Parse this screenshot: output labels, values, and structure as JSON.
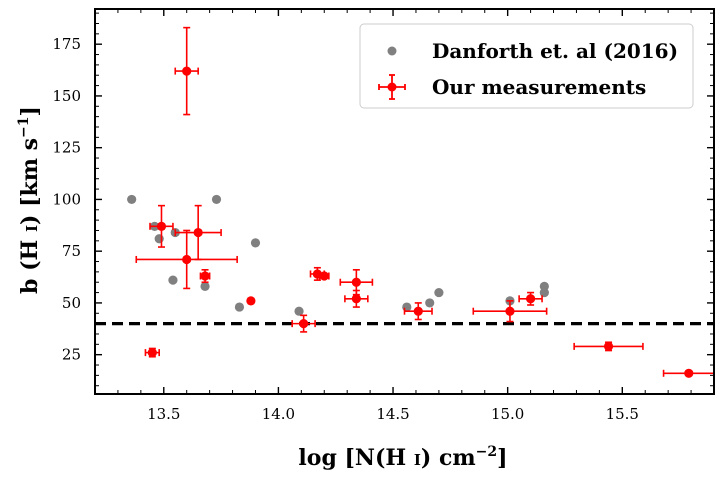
{
  "chart_data": {
    "type": "scatter",
    "xlabel_parts": [
      "log [N(H ",
      "I",
      ") cm",
      "−2",
      "]"
    ],
    "ylabel_parts": [
      "b (H ",
      "I",
      ") [km s",
      "−1",
      "]"
    ],
    "xlim": [
      13.2,
      15.9
    ],
    "ylim": [
      6,
      192
    ],
    "xticks": [
      13.5,
      14.0,
      14.5,
      15.0,
      15.5
    ],
    "xtick_labels": [
      "13.5",
      "14.0",
      "14.5",
      "15.0",
      "15.5"
    ],
    "yticks": [
      25,
      50,
      75,
      100,
      125,
      150,
      175
    ],
    "ytick_labels": [
      "25",
      "50",
      "75",
      "100",
      "125",
      "150",
      "175"
    ],
    "reference_line": {
      "y": 40,
      "style": "dashed",
      "color": "#000000"
    },
    "legend_position": "top-right",
    "series": [
      {
        "name": "Danforth et. al (2016)",
        "marker": "circle",
        "color": "#808080",
        "points": [
          {
            "x": 13.36,
            "y": 100
          },
          {
            "x": 13.46,
            "y": 87
          },
          {
            "x": 13.48,
            "y": 81
          },
          {
            "x": 13.54,
            "y": 61
          },
          {
            "x": 13.55,
            "y": 84
          },
          {
            "x": 13.68,
            "y": 58
          },
          {
            "x": 13.73,
            "y": 100
          },
          {
            "x": 13.83,
            "y": 48
          },
          {
            "x": 13.9,
            "y": 79
          },
          {
            "x": 14.09,
            "y": 46
          },
          {
            "x": 14.56,
            "y": 48
          },
          {
            "x": 14.66,
            "y": 50
          },
          {
            "x": 14.7,
            "y": 55
          },
          {
            "x": 15.01,
            "y": 51
          },
          {
            "x": 15.16,
            "y": 58
          },
          {
            "x": 15.16,
            "y": 55
          }
        ]
      },
      {
        "name": "Our measurements",
        "marker": "circle-errorbar",
        "color": "#ff0000",
        "points": [
          {
            "x": 13.45,
            "y": 26,
            "xerr": 0.03,
            "yerr": 2
          },
          {
            "x": 13.49,
            "y": 87,
            "xerr": 0.05,
            "yerr": 10
          },
          {
            "x": 13.6,
            "y": 162,
            "xerr": 0.05,
            "yerr": 21
          },
          {
            "x": 13.6,
            "y": 71,
            "xerr": 0.22,
            "yerr": 14
          },
          {
            "x": 13.65,
            "y": 84,
            "xerr": 0.1,
            "yerr": 13
          },
          {
            "x": 13.68,
            "y": 63,
            "xerr": 0.02,
            "yerr": 3
          },
          {
            "x": 13.88,
            "y": 51,
            "xerr": 0.0,
            "yerr": 0
          },
          {
            "x": 14.11,
            "y": 40,
            "xerr": 0.05,
            "yerr": 4
          },
          {
            "x": 14.17,
            "y": 64,
            "xerr": 0.03,
            "yerr": 3
          },
          {
            "x": 14.2,
            "y": 63,
            "xerr": 0.02,
            "yerr": 1
          },
          {
            "x": 14.34,
            "y": 60,
            "xerr": 0.07,
            "yerr": 6
          },
          {
            "x": 14.34,
            "y": 52,
            "xerr": 0.05,
            "yerr": 4
          },
          {
            "x": 14.61,
            "y": 46,
            "xerr": 0.06,
            "yerr": 4
          },
          {
            "x": 15.01,
            "y": 46,
            "xerr": 0.16,
            "yerr": 5
          },
          {
            "x": 15.1,
            "y": 52,
            "xerr": 0.05,
            "yerr": 3
          },
          {
            "x": 15.44,
            "y": 29,
            "xerr": 0.15,
            "yerr": 2
          },
          {
            "x": 15.79,
            "y": 16,
            "xerr": 0.11,
            "yerr": 1
          }
        ]
      }
    ]
  }
}
